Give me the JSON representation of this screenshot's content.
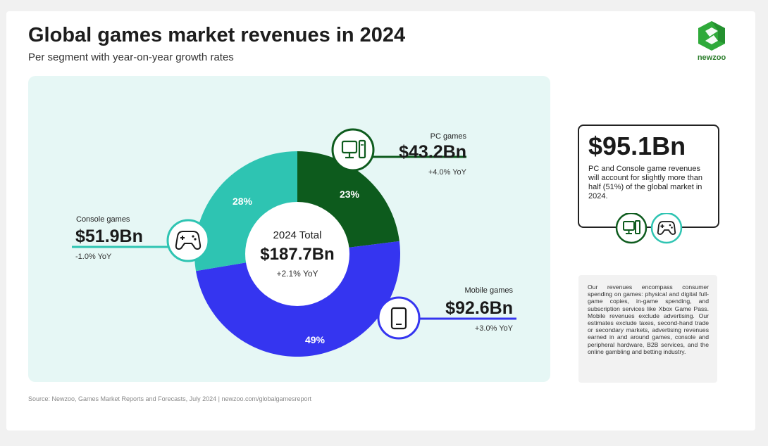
{
  "title": "Global games market revenues in 2024",
  "subtitle": "Per segment with year-on-year growth rates",
  "logo_text": "newzoo",
  "center": {
    "label": "2024 Total",
    "value": "$187.7Bn",
    "yoy": "+2.1% YoY"
  },
  "segments": {
    "pc": {
      "name": "PC games",
      "value": "$43.2Bn",
      "yoy": "+4.0% YoY",
      "pct": "23%",
      "icon": "pc-icon"
    },
    "console": {
      "name": "Console games",
      "value": "$51.9Bn",
      "yoy": "-1.0% YoY",
      "pct": "28%",
      "icon": "gamepad-icon"
    },
    "mobile": {
      "name": "Mobile games",
      "value": "$92.6Bn",
      "yoy": "+3.0% YoY",
      "pct": "49%",
      "icon": "phone-icon"
    }
  },
  "callout": {
    "value": "$95.1Bn",
    "text": "PC and Console game revenues will account for slightly more than half (51%) of the global market in 2024."
  },
  "note": "Our revenues encompass consumer spending on games: physical and digital full-game copies, in-game spending, and subscription services like Xbox Game Pass. Mobile revenues exclude advertising. Our estimates exclude taxes, second-hand trade or secondary markets, advertising revenues earned in and around games, console and peripheral hardware, B2B services, and the online gambling and betting industry.",
  "source": "Source: Newzoo, Games Market Reports and Forecasts, July 2024  |  newzoo.com/globalgamesreport",
  "colors": {
    "pc": "#0d5b1d",
    "console": "#2ec4b2",
    "mobile": "#3535f0",
    "panel": "#e6f7f5"
  },
  "chart_data": {
    "type": "pie",
    "title": "Global games market revenues in 2024",
    "subtitle": "Per segment with year-on-year growth rates",
    "categories": [
      "PC games",
      "Mobile games",
      "Console games"
    ],
    "values": [
      43.2,
      92.6,
      51.9
    ],
    "percentages": [
      23,
      49,
      28
    ],
    "yoy_growth": [
      "+4.0%",
      "+3.0%",
      "-1.0%"
    ],
    "total": 187.7,
    "total_yoy": "+2.1%",
    "unit": "$Bn",
    "donut": true
  }
}
